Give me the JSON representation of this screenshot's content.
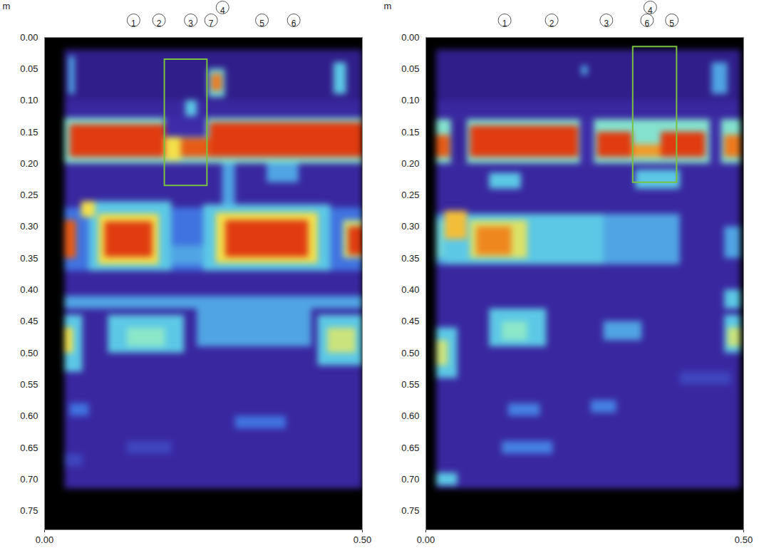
{
  "chart_data": [
    {
      "type": "heatmap",
      "ylabel": "m",
      "xlim": [
        0,
        0.5
      ],
      "xticks": [
        {
          "value": 0,
          "label": "0.00"
        },
        {
          "value": 0.5,
          "label": "0.50"
        }
      ],
      "ylim": [
        0.78,
        0
      ],
      "yticks": [
        {
          "value": 0,
          "label": "0.00"
        },
        {
          "value": 0.05,
          "label": "0.05"
        },
        {
          "value": 0.1,
          "label": "0.10"
        },
        {
          "value": 0.15,
          "label": "0.15"
        },
        {
          "value": 0.2,
          "label": "0.20"
        },
        {
          "value": 0.25,
          "label": "0.25"
        },
        {
          "value": 0.3,
          "label": "0.30"
        },
        {
          "value": 0.35,
          "label": "0.35"
        },
        {
          "value": 0.4,
          "label": "0.40"
        },
        {
          "value": 0.45,
          "label": "0.45"
        },
        {
          "value": 0.5,
          "label": "0.50"
        },
        {
          "value": 0.55,
          "label": "0.55"
        },
        {
          "value": 0.6,
          "label": "0.60"
        },
        {
          "value": 0.65,
          "label": "0.65"
        },
        {
          "value": 0.7,
          "label": "0.70"
        },
        {
          "value": 0.75,
          "label": "0.75"
        }
      ],
      "color_domain": [
        0,
        1
      ],
      "markers": [
        {
          "label": "1",
          "x": 0.14
        },
        {
          "label": "2",
          "x": 0.18
        },
        {
          "label": "3",
          "x": 0.23
        },
        {
          "label": "7",
          "x": 0.262
        },
        {
          "label": "4",
          "x": 0.28
        },
        {
          "label": "5",
          "x": 0.342
        },
        {
          "label": "6",
          "x": 0.392
        }
      ],
      "box": {
        "x1": 0.189,
        "x2": 0.256,
        "y1": 0.035,
        "y2": 0.235,
        "color": "#7ac142"
      },
      "cells": [
        {
          "x1": 0.032,
          "x2": 0.5,
          "y1": 0.02,
          "y2": 0.715,
          "v": 0.22
        },
        {
          "x1": 0.032,
          "x2": 0.5,
          "y1": 0.02,
          "y2": 0.1,
          "v": 0.14
        },
        {
          "x1": 0.038,
          "x2": 0.048,
          "y1": 0.03,
          "y2": 0.09,
          "v": 0.45
        },
        {
          "x1": 0.455,
          "x2": 0.475,
          "y1": 0.04,
          "y2": 0.09,
          "v": 0.5
        },
        {
          "x1": 0.222,
          "x2": 0.24,
          "y1": 0.1,
          "y2": 0.13,
          "v": 0.5
        },
        {
          "x1": 0.258,
          "x2": 0.284,
          "y1": 0.05,
          "y2": 0.095,
          "v": 0.55
        },
        {
          "x1": 0.263,
          "x2": 0.279,
          "y1": 0.058,
          "y2": 0.085,
          "v": 0.9
        },
        {
          "x1": 0.032,
          "x2": 0.5,
          "y1": 0.128,
          "y2": 0.2,
          "v": 0.6
        },
        {
          "x1": 0.04,
          "x2": 0.19,
          "y1": 0.138,
          "y2": 0.19,
          "v": 1
        },
        {
          "x1": 0.19,
          "x2": 0.255,
          "y1": 0.125,
          "y2": 0.158,
          "v": 0.25
        },
        {
          "x1": 0.19,
          "x2": 0.215,
          "y1": 0.158,
          "y2": 0.195,
          "v": 0.75
        },
        {
          "x1": 0.215,
          "x2": 0.26,
          "y1": 0.16,
          "y2": 0.19,
          "v": 0.95
        },
        {
          "x1": 0.26,
          "x2": 0.5,
          "y1": 0.135,
          "y2": 0.19,
          "v": 1
        },
        {
          "x1": 0.28,
          "x2": 0.3,
          "y1": 0.2,
          "y2": 0.28,
          "v": 0.45
        },
        {
          "x1": 0.35,
          "x2": 0.4,
          "y1": 0.2,
          "y2": 0.23,
          "v": 0.45
        },
        {
          "x1": 0.032,
          "x2": 0.5,
          "y1": 0.27,
          "y2": 0.37,
          "v": 0.38
        },
        {
          "x1": 0.07,
          "x2": 0.2,
          "y1": 0.26,
          "y2": 0.37,
          "v": 0.5
        },
        {
          "x1": 0.085,
          "x2": 0.18,
          "y1": 0.28,
          "y2": 0.36,
          "v": 0.75
        },
        {
          "x1": 0.095,
          "x2": 0.17,
          "y1": 0.292,
          "y2": 0.348,
          "v": 1
        },
        {
          "x1": 0.25,
          "x2": 0.45,
          "y1": 0.265,
          "y2": 0.37,
          "v": 0.5
        },
        {
          "x1": 0.27,
          "x2": 0.43,
          "y1": 0.278,
          "y2": 0.358,
          "v": 0.75
        },
        {
          "x1": 0.285,
          "x2": 0.415,
          "y1": 0.29,
          "y2": 0.348,
          "v": 1
        },
        {
          "x1": 0.032,
          "x2": 0.05,
          "y1": 0.29,
          "y2": 0.35,
          "v": 0.95
        },
        {
          "x1": 0.47,
          "x2": 0.5,
          "y1": 0.29,
          "y2": 0.35,
          "v": 0.7
        },
        {
          "x1": 0.478,
          "x2": 0.5,
          "y1": 0.3,
          "y2": 0.345,
          "v": 1
        },
        {
          "x1": 0.058,
          "x2": 0.08,
          "y1": 0.26,
          "y2": 0.285,
          "v": 0.75
        },
        {
          "x1": 0.2,
          "x2": 0.25,
          "y1": 0.33,
          "y2": 0.36,
          "v": 0.45
        },
        {
          "x1": 0.032,
          "x2": 0.5,
          "y1": 0.41,
          "y2": 0.43,
          "v": 0.45
        },
        {
          "x1": 0.1,
          "x2": 0.22,
          "y1": 0.44,
          "y2": 0.5,
          "v": 0.5
        },
        {
          "x1": 0.13,
          "x2": 0.19,
          "y1": 0.46,
          "y2": 0.49,
          "v": 0.62
        },
        {
          "x1": 0.24,
          "x2": 0.42,
          "y1": 0.42,
          "y2": 0.49,
          "v": 0.45
        },
        {
          "x1": 0.032,
          "x2": 0.06,
          "y1": 0.44,
          "y2": 0.53,
          "v": 0.5
        },
        {
          "x1": 0.032,
          "x2": 0.045,
          "y1": 0.46,
          "y2": 0.5,
          "v": 0.75
        },
        {
          "x1": 0.43,
          "x2": 0.5,
          "y1": 0.44,
          "y2": 0.52,
          "v": 0.5
        },
        {
          "x1": 0.445,
          "x2": 0.49,
          "y1": 0.46,
          "y2": 0.5,
          "v": 0.7
        },
        {
          "x1": 0.3,
          "x2": 0.38,
          "y1": 0.6,
          "y2": 0.62,
          "v": 0.38
        },
        {
          "x1": 0.04,
          "x2": 0.07,
          "y1": 0.58,
          "y2": 0.6,
          "v": 0.38
        },
        {
          "x1": 0.032,
          "x2": 0.06,
          "y1": 0.66,
          "y2": 0.68,
          "v": 0.3
        },
        {
          "x1": 0.13,
          "x2": 0.2,
          "y1": 0.64,
          "y2": 0.66,
          "v": 0.3
        }
      ]
    },
    {
      "type": "heatmap",
      "ylabel": "m",
      "xlim": [
        0,
        0.5
      ],
      "xticks": [
        {
          "value": 0,
          "label": "0.00"
        },
        {
          "value": 0.5,
          "label": "0.50"
        }
      ],
      "ylim": [
        0.78,
        0
      ],
      "yticks": [
        {
          "value": 0,
          "label": "0.00"
        },
        {
          "value": 0.05,
          "label": "0.05"
        },
        {
          "value": 0.1,
          "label": "0.10"
        },
        {
          "value": 0.15,
          "label": "0.15"
        },
        {
          "value": 0.2,
          "label": "0.20"
        },
        {
          "value": 0.25,
          "label": "0.25"
        },
        {
          "value": 0.3,
          "label": "0.30"
        },
        {
          "value": 0.35,
          "label": "0.35"
        },
        {
          "value": 0.4,
          "label": "0.40"
        },
        {
          "value": 0.45,
          "label": "0.45"
        },
        {
          "value": 0.5,
          "label": "0.50"
        },
        {
          "value": 0.55,
          "label": "0.55"
        },
        {
          "value": 0.6,
          "label": "0.60"
        },
        {
          "value": 0.65,
          "label": "0.65"
        },
        {
          "value": 0.7,
          "label": "0.70"
        },
        {
          "value": 0.75,
          "label": "0.75"
        }
      ],
      "color_domain": [
        0,
        1
      ],
      "markers": [
        {
          "label": "1",
          "x": 0.124
        },
        {
          "label": "2",
          "x": 0.198
        },
        {
          "label": "3",
          "x": 0.284
        },
        {
          "label": "6",
          "x": 0.348
        },
        {
          "label": "4",
          "x": 0.353
        },
        {
          "label": "5",
          "x": 0.387
        }
      ],
      "box": {
        "x1": 0.326,
        "x2": 0.395,
        "y1": 0.015,
        "y2": 0.23,
        "color": "#7ac142"
      },
      "cells": [
        {
          "x1": 0.017,
          "x2": 0.495,
          "y1": 0.02,
          "y2": 0.715,
          "v": 0.22
        },
        {
          "x1": 0.017,
          "x2": 0.495,
          "y1": 0.02,
          "y2": 0.1,
          "v": 0.14
        },
        {
          "x1": 0.245,
          "x2": 0.255,
          "y1": 0.045,
          "y2": 0.06,
          "v": 0.45
        },
        {
          "x1": 0.45,
          "x2": 0.475,
          "y1": 0.04,
          "y2": 0.09,
          "v": 0.45
        },
        {
          "x1": 0.017,
          "x2": 0.495,
          "y1": 0.13,
          "y2": 0.2,
          "v": 0.6
        },
        {
          "x1": 0.04,
          "x2": 0.065,
          "y1": 0.13,
          "y2": 0.2,
          "v": 0.2
        },
        {
          "x1": 0.243,
          "x2": 0.265,
          "y1": 0.13,
          "y2": 0.2,
          "v": 0.25
        },
        {
          "x1": 0.447,
          "x2": 0.465,
          "y1": 0.13,
          "y2": 0.2,
          "v": 0.25
        },
        {
          "x1": 0.017,
          "x2": 0.038,
          "y1": 0.155,
          "y2": 0.19,
          "v": 0.95
        },
        {
          "x1": 0.07,
          "x2": 0.24,
          "y1": 0.14,
          "y2": 0.19,
          "v": 1
        },
        {
          "x1": 0.27,
          "x2": 0.325,
          "y1": 0.15,
          "y2": 0.19,
          "v": 1
        },
        {
          "x1": 0.325,
          "x2": 0.37,
          "y1": 0.17,
          "y2": 0.19,
          "v": 0.85
        },
        {
          "x1": 0.37,
          "x2": 0.44,
          "y1": 0.15,
          "y2": 0.19,
          "v": 1
        },
        {
          "x1": 0.47,
          "x2": 0.495,
          "y1": 0.155,
          "y2": 0.19,
          "v": 0.9
        },
        {
          "x1": 0.1,
          "x2": 0.15,
          "y1": 0.215,
          "y2": 0.24,
          "v": 0.5
        },
        {
          "x1": 0.33,
          "x2": 0.4,
          "y1": 0.21,
          "y2": 0.24,
          "v": 0.5
        },
        {
          "x1": 0.017,
          "x2": 0.4,
          "y1": 0.28,
          "y2": 0.36,
          "v": 0.45
        },
        {
          "x1": 0.03,
          "x2": 0.28,
          "y1": 0.28,
          "y2": 0.36,
          "v": 0.5
        },
        {
          "x1": 0.03,
          "x2": 0.065,
          "y1": 0.275,
          "y2": 0.32,
          "v": 0.8
        },
        {
          "x1": 0.07,
          "x2": 0.16,
          "y1": 0.29,
          "y2": 0.35,
          "v": 0.72
        },
        {
          "x1": 0.08,
          "x2": 0.135,
          "y1": 0.3,
          "y2": 0.345,
          "v": 0.88
        },
        {
          "x1": 0.017,
          "x2": 0.03,
          "y1": 0.29,
          "y2": 0.35,
          "v": 0.55
        },
        {
          "x1": 0.47,
          "x2": 0.495,
          "y1": 0.3,
          "y2": 0.35,
          "v": 0.45
        },
        {
          "x1": 0.1,
          "x2": 0.19,
          "y1": 0.43,
          "y2": 0.49,
          "v": 0.5
        },
        {
          "x1": 0.12,
          "x2": 0.16,
          "y1": 0.45,
          "y2": 0.48,
          "v": 0.62
        },
        {
          "x1": 0.28,
          "x2": 0.34,
          "y1": 0.45,
          "y2": 0.48,
          "v": 0.45
        },
        {
          "x1": 0.017,
          "x2": 0.05,
          "y1": 0.46,
          "y2": 0.54,
          "v": 0.5
        },
        {
          "x1": 0.017,
          "x2": 0.035,
          "y1": 0.48,
          "y2": 0.52,
          "v": 0.7
        },
        {
          "x1": 0.47,
          "x2": 0.495,
          "y1": 0.44,
          "y2": 0.5,
          "v": 0.5
        },
        {
          "x1": 0.475,
          "x2": 0.495,
          "y1": 0.46,
          "y2": 0.49,
          "v": 0.7
        },
        {
          "x1": 0.47,
          "x2": 0.495,
          "y1": 0.4,
          "y2": 0.43,
          "v": 0.5
        },
        {
          "x1": 0.13,
          "x2": 0.18,
          "y1": 0.58,
          "y2": 0.6,
          "v": 0.4
        },
        {
          "x1": 0.26,
          "x2": 0.3,
          "y1": 0.575,
          "y2": 0.595,
          "v": 0.4
        },
        {
          "x1": 0.12,
          "x2": 0.2,
          "y1": 0.64,
          "y2": 0.66,
          "v": 0.4
        },
        {
          "x1": 0.017,
          "x2": 0.05,
          "y1": 0.69,
          "y2": 0.71,
          "v": 0.5
        },
        {
          "x1": 0.4,
          "x2": 0.48,
          "y1": 0.53,
          "y2": 0.55,
          "v": 0.3
        }
      ]
    }
  ]
}
